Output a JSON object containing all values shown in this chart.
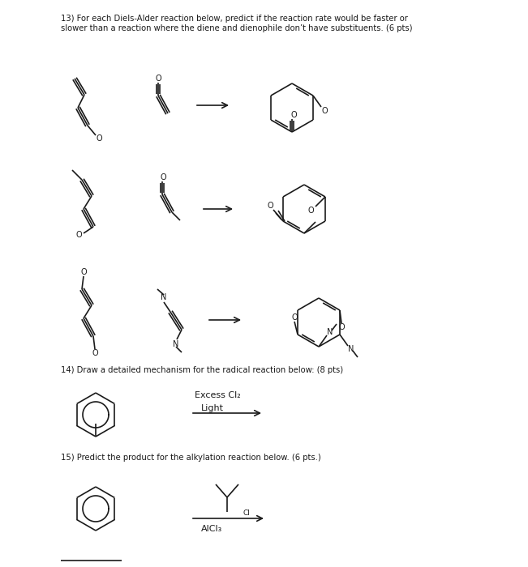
{
  "bg_color": "#ffffff",
  "line_color": "#1a1a1a",
  "text_color": "#1a1a1a",
  "title13": "13) For each Diels-Alder reaction below, predict if the reaction rate would be faster or\nslower than a reaction where the diene and dienophile don’t have substituents. (6 pts)",
  "title14": "14) Draw a detailed mechanism for the radical reaction below: (8 pts)",
  "title15": "15) Predict the product for the alkylation reaction below. (6 pts.)",
  "excess_cl2": "Excess Cl₂",
  "light": "Light",
  "alcl3": "AlCl₃",
  "lw": 1.2
}
